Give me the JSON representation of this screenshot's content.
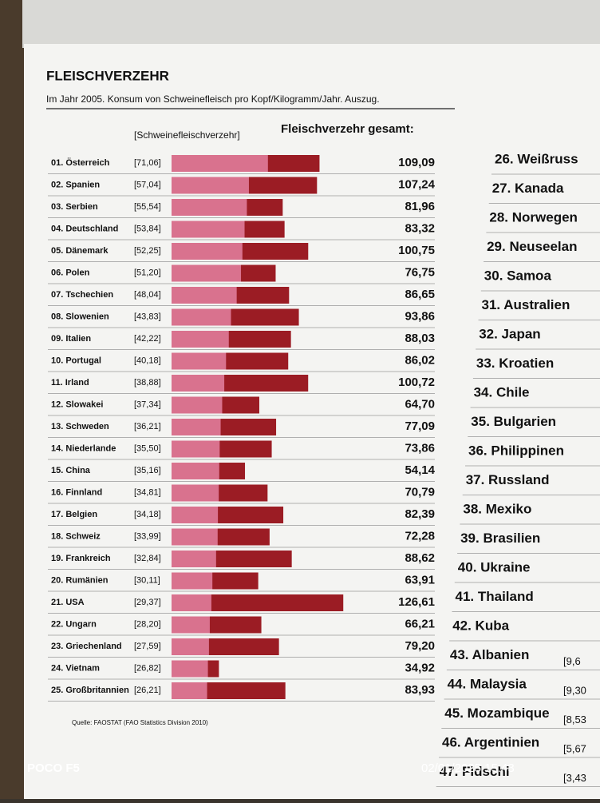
{
  "chart_data": {
    "type": "bar",
    "title": "FLEISCHVERZEHR",
    "subtitle": "Im Jahr 2005. Konsum von Schweinefleisch pro Kopf/Kilogramm/Jahr. Auszug.",
    "categories": [
      "01. Österreich",
      "02. Spanien",
      "03. Serbien",
      "04. Deutschland",
      "05. Dänemark",
      "06. Polen",
      "07. Tschechien",
      "08. Slowenien",
      "09. Italien",
      "10. Portugal",
      "11. Irland",
      "12. Slowakei",
      "13. Schweden",
      "14. Niederlande",
      "15. China",
      "16. Finnland",
      "17. Belgien",
      "18. Schweiz",
      "19. Frankreich",
      "20. Rumänien",
      "21. USA",
      "22. Ungarn",
      "23. Griechenland",
      "24. Vietnam",
      "25. Großbritannien"
    ],
    "series": [
      {
        "name": "[Schweinefleischverzehr]",
        "color": "#d9728e",
        "values": [
          71.06,
          57.04,
          55.54,
          53.84,
          52.25,
          51.2,
          48.04,
          43.83,
          42.22,
          40.18,
          38.88,
          37.34,
          36.21,
          35.5,
          35.16,
          34.81,
          34.18,
          33.99,
          32.84,
          30.11,
          29.37,
          28.2,
          27.59,
          26.82,
          26.21
        ],
        "value_labels": [
          "[71,06]",
          "[57,04]",
          "[55,54]",
          "[53,84]",
          "[52,25]",
          "[51,20]",
          "[48,04]",
          "[43,83]",
          "[42,22]",
          "[40,18]",
          "[38,88]",
          "[37,34]",
          "[36,21]",
          "[35,50]",
          "[35,16]",
          "[34,81]",
          "[34,18]",
          "[33,99]",
          "[32,84]",
          "[30,11]",
          "[29,37]",
          "[28,20]",
          "[27,59]",
          "[26,82]",
          "[26,21]"
        ]
      },
      {
        "name": "Fleischverzehr gesamt:",
        "color": "#9b1c24",
        "values": [
          109.09,
          107.24,
          81.96,
          83.32,
          100.75,
          76.75,
          86.65,
          93.86,
          88.03,
          86.02,
          100.72,
          64.7,
          77.09,
          73.86,
          54.14,
          70.79,
          82.39,
          72.28,
          88.62,
          63.91,
          126.61,
          66.21,
          79.2,
          34.92,
          83.93
        ],
        "value_labels": [
          "109,09",
          "107,24",
          "81,96",
          "83,32",
          "100,75",
          "76,75",
          "86,65",
          "93,86",
          "88,03",
          "86,02",
          "100,72",
          "64,70",
          "77,09",
          "73,86",
          "54,14",
          "70,79",
          "82,39",
          "72,28",
          "88,62",
          "63,91",
          "126,61",
          "66,21",
          "79,20",
          "34,92",
          "83,93"
        ]
      }
    ],
    "source": "Quelle: FAOSTAT (FAO Statistics Division 2010)"
  },
  "right_column": [
    {
      "label": "26. Weißruss"
    },
    {
      "label": "27. Kanada"
    },
    {
      "label": "28. Norwegen"
    },
    {
      "label": "29. Neuseelan"
    },
    {
      "label": "30. Samoa"
    },
    {
      "label": "31. Australien"
    },
    {
      "label": "32. Japan"
    },
    {
      "label": "33. Kroatien"
    },
    {
      "label": "34. Chile"
    },
    {
      "label": "35. Bulgarien"
    },
    {
      "label": "36. Philippinen"
    },
    {
      "label": "37. Russland"
    },
    {
      "label": "38. Mexiko"
    },
    {
      "label": "39. Brasilien"
    },
    {
      "label": "40. Ukraine"
    },
    {
      "label": "41. Thailand"
    },
    {
      "label": "42. Kuba"
    },
    {
      "label": "43. Albanien",
      "pork": "[9,6"
    },
    {
      "label": "44. Malaysia",
      "pork": "[9,30"
    },
    {
      "label": "45. Mozambique",
      "pork": "[8,53"
    },
    {
      "label": "46. Argentinien",
      "pork": "[5,67"
    },
    {
      "label": "47. Fidschi",
      "pork": "[3,43"
    }
  ],
  "watermark": {
    "brand": "POCO F5",
    "timestamp": "02/01/2025 15:43"
  }
}
